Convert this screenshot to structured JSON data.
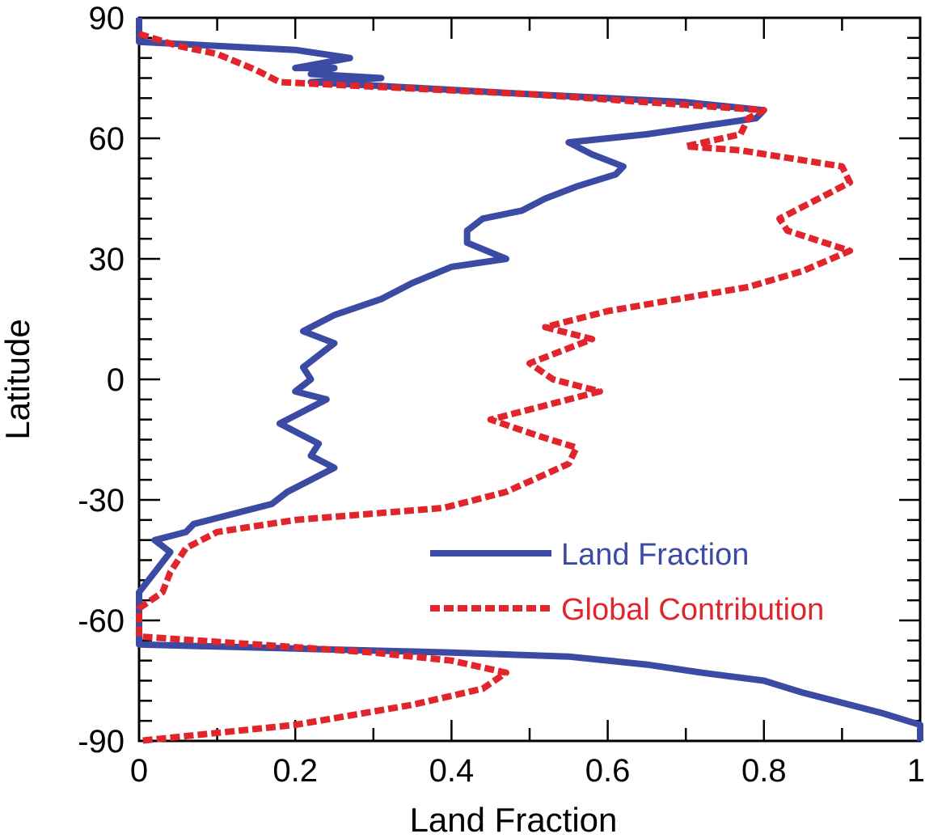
{
  "chart_data": {
    "type": "line",
    "title": "",
    "xlabel": "Land Fraction",
    "ylabel": "Latitude",
    "xlim": [
      0,
      1
    ],
    "ylim": [
      -90,
      90
    ],
    "x_ticks": [
      0,
      0.2,
      0.4,
      0.6,
      0.8,
      1
    ],
    "x_tick_labels": [
      "0",
      "0.2",
      "0.4",
      "0.6",
      "0.8",
      "1"
    ],
    "y_ticks": [
      -90,
      -60,
      -30,
      0,
      30,
      60,
      90
    ],
    "y_tick_labels": [
      "-90",
      "-60",
      "-30",
      "0",
      "30",
      "60",
      "90"
    ],
    "grid": false,
    "legend_position": "lower-right",
    "series": [
      {
        "name": "Land Fraction",
        "color": "#3b4aa3",
        "style": "solid",
        "points": [
          [
            0.0,
            90
          ],
          [
            0.0,
            84
          ],
          [
            0.2,
            82
          ],
          [
            0.27,
            80
          ],
          [
            0.2,
            77.5
          ],
          [
            0.25,
            77.5
          ],
          [
            0.22,
            76
          ],
          [
            0.31,
            75
          ],
          [
            0.22,
            74
          ],
          [
            0.5,
            71
          ],
          [
            0.7,
            69
          ],
          [
            0.8,
            67
          ],
          [
            0.79,
            65
          ],
          [
            0.72,
            63
          ],
          [
            0.65,
            61
          ],
          [
            0.55,
            59
          ],
          [
            0.58,
            56
          ],
          [
            0.62,
            53
          ],
          [
            0.61,
            51
          ],
          [
            0.56,
            48
          ],
          [
            0.52,
            45
          ],
          [
            0.49,
            42
          ],
          [
            0.44,
            40
          ],
          [
            0.42,
            37
          ],
          [
            0.42,
            34
          ],
          [
            0.47,
            30
          ],
          [
            0.4,
            28
          ],
          [
            0.35,
            24
          ],
          [
            0.31,
            20
          ],
          [
            0.25,
            16
          ],
          [
            0.21,
            12
          ],
          [
            0.25,
            9
          ],
          [
            0.23,
            6
          ],
          [
            0.21,
            3
          ],
          [
            0.22,
            0
          ],
          [
            0.2,
            -3
          ],
          [
            0.24,
            -5
          ],
          [
            0.21,
            -8
          ],
          [
            0.18,
            -11
          ],
          [
            0.2,
            -13
          ],
          [
            0.23,
            -16
          ],
          [
            0.22,
            -19
          ],
          [
            0.25,
            -22
          ],
          [
            0.22,
            -25
          ],
          [
            0.19,
            -28
          ],
          [
            0.17,
            -31
          ],
          [
            0.07,
            -36
          ],
          [
            0.06,
            -38
          ],
          [
            0.02,
            -40
          ],
          [
            0.04,
            -43
          ],
          [
            0.02,
            -48
          ],
          [
            0.0,
            -53
          ],
          [
            0.0,
            -59
          ],
          [
            0.0,
            -66
          ],
          [
            0.2,
            -67
          ],
          [
            0.4,
            -68
          ],
          [
            0.55,
            -69
          ],
          [
            0.65,
            -71
          ],
          [
            0.72,
            -73
          ],
          [
            0.8,
            -75
          ],
          [
            0.85,
            -78
          ],
          [
            0.95,
            -83
          ],
          [
            1.0,
            -86
          ],
          [
            1.0,
            -90
          ]
        ]
      },
      {
        "name": "Global Contribution",
        "color": "#e0262c",
        "style": "dashed",
        "points": [
          [
            0.0,
            86
          ],
          [
            0.05,
            83
          ],
          [
            0.1,
            81
          ],
          [
            0.15,
            77
          ],
          [
            0.18,
            74
          ],
          [
            0.5,
            71
          ],
          [
            0.8,
            67
          ],
          [
            0.78,
            65
          ],
          [
            0.77,
            61
          ],
          [
            0.7,
            58
          ],
          [
            0.77,
            57
          ],
          [
            0.9,
            53
          ],
          [
            0.91,
            49
          ],
          [
            0.86,
            44
          ],
          [
            0.82,
            40
          ],
          [
            0.83,
            37
          ],
          [
            0.91,
            32
          ],
          [
            0.85,
            27
          ],
          [
            0.78,
            23
          ],
          [
            0.6,
            17
          ],
          [
            0.52,
            13
          ],
          [
            0.58,
            10
          ],
          [
            0.5,
            4
          ],
          [
            0.53,
            0
          ],
          [
            0.59,
            -3
          ],
          [
            0.53,
            -6
          ],
          [
            0.45,
            -10
          ],
          [
            0.51,
            -14
          ],
          [
            0.56,
            -17
          ],
          [
            0.55,
            -21
          ],
          [
            0.47,
            -28
          ],
          [
            0.39,
            -32
          ],
          [
            0.2,
            -35
          ],
          [
            0.1,
            -38
          ],
          [
            0.06,
            -42
          ],
          [
            0.04,
            -48
          ],
          [
            0.03,
            -53
          ],
          [
            0.0,
            -57
          ],
          [
            0.0,
            -64
          ],
          [
            0.15,
            -66
          ],
          [
            0.3,
            -68
          ],
          [
            0.4,
            -70
          ],
          [
            0.47,
            -73
          ],
          [
            0.44,
            -77
          ],
          [
            0.35,
            -81
          ],
          [
            0.2,
            -86
          ],
          [
            0.0,
            -90
          ]
        ]
      }
    ]
  },
  "legend": {
    "items": [
      {
        "label": "Land Fraction",
        "color": "#3b4aa3"
      },
      {
        "label": "Global Contribution",
        "color": "#e0262c"
      }
    ]
  }
}
